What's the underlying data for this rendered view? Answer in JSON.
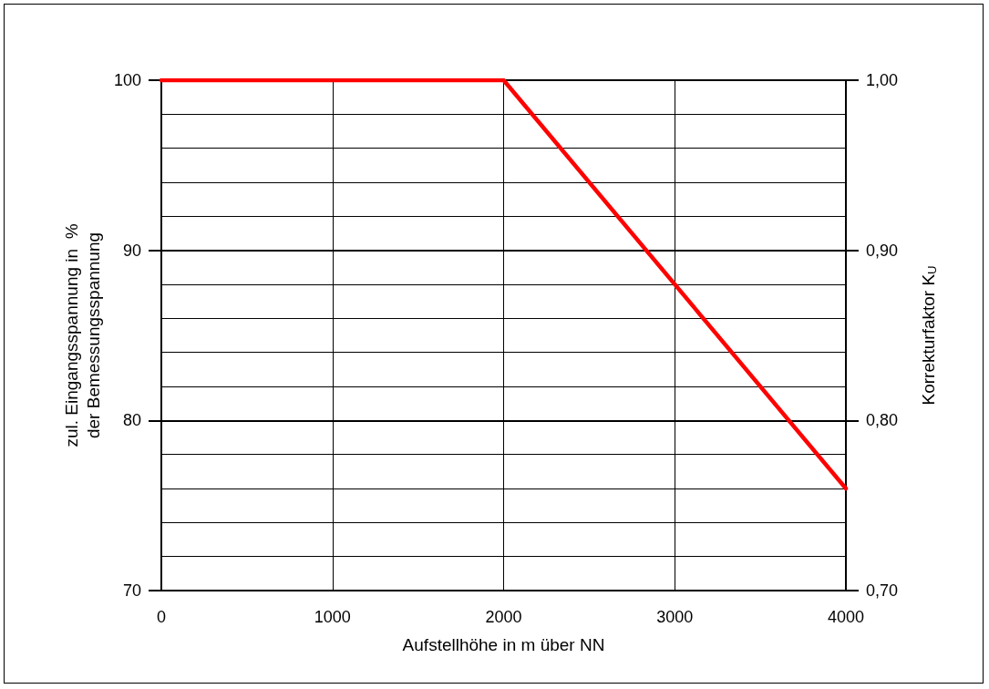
{
  "chart_data": {
    "type": "line",
    "xlabel": "Aufstellhöhe in m über NN",
    "ylabel": "zul. Eingangsspannung in  %\nder Bemessungsspannung",
    "y2label": "Korrekturfaktor K$_{U}$",
    "x": [
      0,
      2000,
      4000
    ],
    "series": [
      {
        "color": "#ff0000",
        "values": [
          100,
          100,
          76
        ]
      }
    ],
    "xlim": [
      0,
      4000
    ],
    "xticks": [
      0,
      1000,
      2000,
      3000,
      4000
    ],
    "ylim": [
      70,
      100
    ],
    "yticks": [
      70,
      {
        "value": 72,
        "label": null
      },
      {
        "value": 74,
        "label": null
      },
      {
        "value": 76,
        "label": null
      },
      {
        "value": 78,
        "label": null
      },
      80,
      {
        "value": 82,
        "label": null
      },
      {
        "value": 84,
        "label": null
      },
      {
        "value": 86,
        "label": null
      },
      {
        "value": 88,
        "label": null
      },
      90,
      {
        "value": 92,
        "label": null
      },
      {
        "value": 94,
        "label": null
      },
      {
        "value": 96,
        "label": null
      },
      {
        "value": 98,
        "label": null
      },
      100
    ],
    "y2lim": [
      0.7,
      1.0
    ],
    "y2ticks": [
      {
        "value": 0.7,
        "label": "0,70"
      },
      {
        "value": 0.8,
        "label": "0,80"
      },
      {
        "value": 0.9,
        "label": "0,90"
      },
      {
        "value": 1.0,
        "label": "1,00"
      }
    ],
    "grid": true,
    "marker": "none",
    "line_style": "solid"
  }
}
